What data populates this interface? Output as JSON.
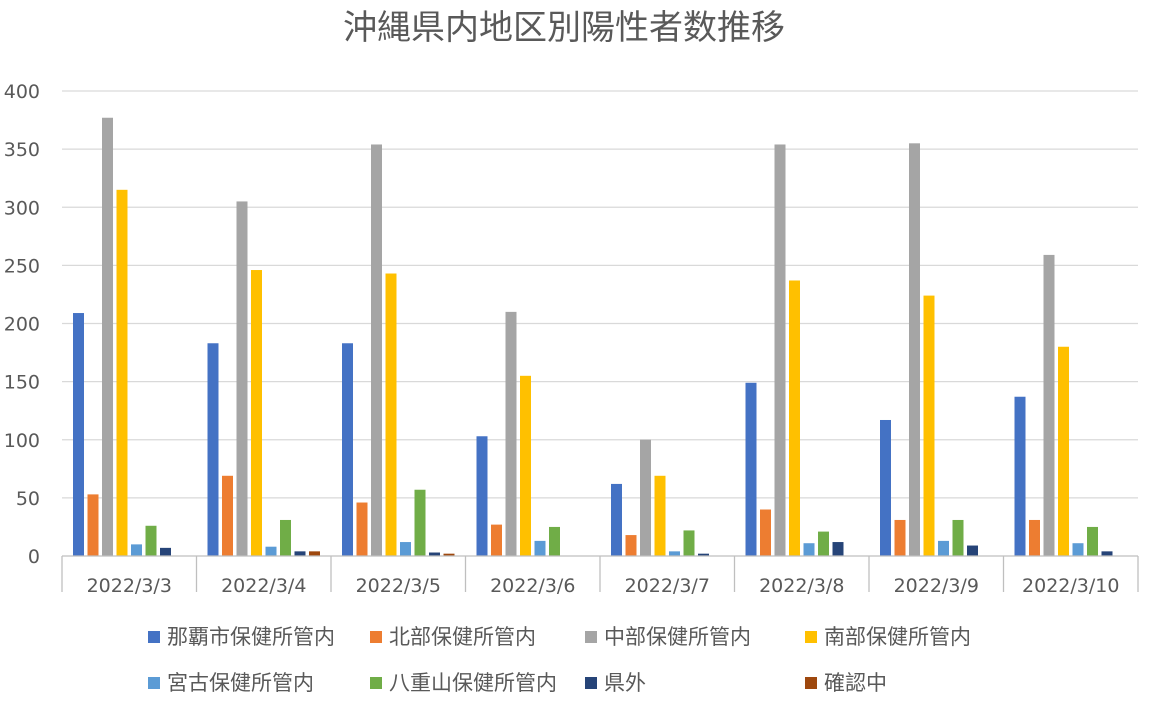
{
  "chart_data": {
    "type": "bar",
    "title": "沖縄県内地区別陽性者数推移",
    "xlabel": "",
    "ylabel": "",
    "ylim": [
      0,
      400
    ],
    "yticks": [
      0,
      50,
      100,
      150,
      200,
      250,
      300,
      350,
      400
    ],
    "grid": true,
    "legend_position": "bottom",
    "categories": [
      "2022/3/3",
      "2022/3/4",
      "2022/3/5",
      "2022/3/6",
      "2022/3/7",
      "2022/3/8",
      "2022/3/9",
      "2022/3/10"
    ],
    "series": [
      {
        "name": "那覇市保健所管内",
        "color": "#4472c4",
        "values": [
          209,
          183,
          183,
          103,
          62,
          149,
          117,
          137
        ]
      },
      {
        "name": "北部保健所管内",
        "color": "#ed7d31",
        "values": [
          53,
          69,
          46,
          27,
          18,
          40,
          31,
          31
        ]
      },
      {
        "name": "中部保健所管内",
        "color": "#a5a5a5",
        "values": [
          377,
          305,
          354,
          210,
          100,
          354,
          355,
          259
        ]
      },
      {
        "name": "南部保健所管内",
        "color": "#ffc000",
        "values": [
          315,
          246,
          243,
          155,
          69,
          237,
          224,
          180
        ]
      },
      {
        "name": "宮古保健所管内",
        "color": "#5b9bd5",
        "values": [
          10,
          8,
          12,
          13,
          4,
          11,
          13,
          11
        ]
      },
      {
        "name": "八重山保健所管内",
        "color": "#70ad47",
        "values": [
          26,
          31,
          57,
          25,
          22,
          21,
          31,
          25
        ]
      },
      {
        "name": "県外",
        "color": "#264478",
        "values": [
          7,
          4,
          3,
          0,
          2,
          12,
          9,
          4
        ]
      },
      {
        "name": "確認中",
        "color": "#9e480e",
        "values": [
          0,
          4,
          2,
          0,
          0,
          0,
          0,
          0
        ]
      }
    ]
  }
}
